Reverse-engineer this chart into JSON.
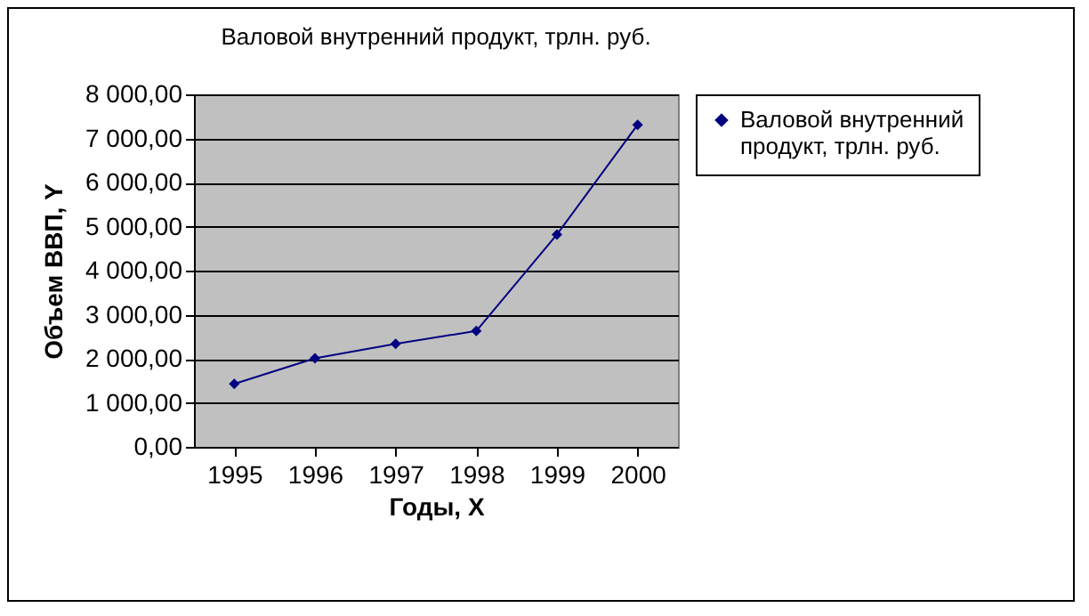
{
  "chart_data": {
    "type": "line",
    "title": "Валовой внутренний продукт, трлн. руб.",
    "xlabel": "Годы, X",
    "ylabel": "Объем ВВП, Y",
    "categories": [
      "1995",
      "1996",
      "1997",
      "1998",
      "1999",
      "2000"
    ],
    "series": [
      {
        "name": "Валовой внутренний продукт, трлн. руб.",
        "color": "#000080",
        "values": [
          1430,
          2010,
          2340,
          2630,
          4820,
          7310
        ]
      }
    ],
    "ylim": [
      0,
      8000
    ],
    "yticks": [
      {
        "value": 0,
        "label": "0,00"
      },
      {
        "value": 1000,
        "label": "1 000,00"
      },
      {
        "value": 2000,
        "label": "2 000,00"
      },
      {
        "value": 3000,
        "label": "3 000,00"
      },
      {
        "value": 4000,
        "label": "4 000,00"
      },
      {
        "value": 5000,
        "label": "5 000,00"
      },
      {
        "value": 6000,
        "label": "6 000,00"
      },
      {
        "value": 7000,
        "label": "7 000,00"
      },
      {
        "value": 8000,
        "label": "8 000,00"
      }
    ],
    "grid": "y",
    "legend": "right",
    "marker": "diamond",
    "line_style": "solid"
  }
}
